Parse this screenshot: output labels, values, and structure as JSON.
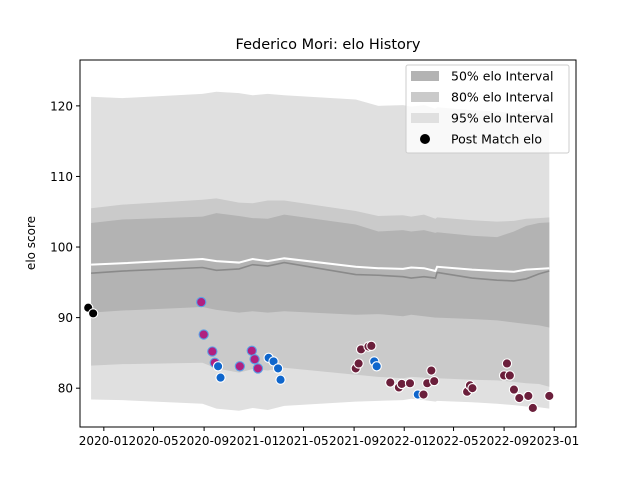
{
  "chart_data": {
    "type": "line",
    "title": "Federico Mori: elo History",
    "xlabel": "",
    "ylabel": "elo score",
    "xlim": [
      "2019-11-04",
      "2023-02-23"
    ],
    "ylim": [
      74.5,
      126.5
    ],
    "x_ticks": [
      "2020-01",
      "2020-05",
      "2020-09",
      "2021-01",
      "2021-05",
      "2021-09",
      "2022-01",
      "2022-05",
      "2022-09",
      "2023-01"
    ],
    "y_ticks": [
      80,
      90,
      100,
      110,
      120
    ],
    "grid": false,
    "legend_position": "top-right",
    "legend": [
      {
        "label": "50% elo Interval",
        "kind": "band",
        "color": "#b3b3b3"
      },
      {
        "label": "80% elo Interval",
        "kind": "band",
        "color": "#cacaca"
      },
      {
        "label": "95% elo Interval",
        "kind": "band",
        "color": "#e0e0e0"
      },
      {
        "label": "Post Match elo",
        "kind": "marker",
        "color": "#000000"
      }
    ],
    "bands": {
      "x": [
        "2019-12-01",
        "2020-02-15",
        "2020-08-28",
        "2020-10-01",
        "2020-11-25",
        "2020-12-28",
        "2021-02-03",
        "2021-03-15",
        "2021-09-05",
        "2021-10-30",
        "2021-12-29",
        "2022-01-18",
        "2022-02-18",
        "2022-03-18",
        "2022-03-22",
        "2022-06-15",
        "2022-08-15",
        "2022-09-25",
        "2022-10-25",
        "2022-11-25",
        "2022-12-20"
      ],
      "mean": [
        96.3,
        96.6,
        97.1,
        96.7,
        96.9,
        97.5,
        97.3,
        97.8,
        96.1,
        96.0,
        95.8,
        95.6,
        95.8,
        95.6,
        96.4,
        95.6,
        95.3,
        95.2,
        95.5,
        96.2,
        96.6
      ],
      "upper_line": [
        97.5,
        97.7,
        98.3,
        98.0,
        97.8,
        98.3,
        98.0,
        98.4,
        97.2,
        97.0,
        96.9,
        97.1,
        97.0,
        96.6,
        97.2,
        96.8,
        96.6,
        96.5,
        96.8,
        96.9,
        97.0
      ],
      "p50": {
        "lower": [
          90.7,
          91.0,
          91.5,
          91.1,
          90.7,
          90.9,
          90.7,
          90.9,
          90.4,
          90.5,
          90.2,
          90.4,
          90.2,
          90.0,
          90.0,
          89.8,
          89.6,
          89.3,
          89.1,
          88.9,
          88.6
        ],
        "upper": [
          103.4,
          103.9,
          104.3,
          104.8,
          104.4,
          104.1,
          104.0,
          104.6,
          103.2,
          102.2,
          102.4,
          102.2,
          102.4,
          102.0,
          102.1,
          101.6,
          101.4,
          102.2,
          103.0,
          103.4,
          103.5
        ]
      },
      "p80": {
        "lower": [
          83.2,
          83.4,
          83.6,
          82.8,
          82.2,
          82.7,
          82.5,
          82.9,
          81.9,
          81.6,
          81.4,
          81.6,
          81.5,
          81.0,
          81.4,
          81.2,
          81.1,
          80.9,
          80.7,
          80.6,
          80.2
        ],
        "upper": [
          105.5,
          106.0,
          106.7,
          106.9,
          106.3,
          106.2,
          106.6,
          106.6,
          105.1,
          104.4,
          104.5,
          104.3,
          104.6,
          104.0,
          104.2,
          103.8,
          103.6,
          103.7,
          104.0,
          104.1,
          104.2
        ]
      },
      "p95": {
        "lower": [
          78.4,
          78.3,
          77.8,
          77.1,
          76.8,
          77.2,
          76.9,
          77.5,
          78.1,
          78.2,
          78.3,
          78.5,
          78.3,
          78.1,
          78.2,
          78.0,
          77.8,
          77.6,
          77.4,
          77.3,
          77.1
        ],
        "upper": [
          121.3,
          121.1,
          121.7,
          122.0,
          121.8,
          121.5,
          121.7,
          121.5,
          120.9,
          120.0,
          120.1,
          119.9,
          120.1,
          119.6,
          119.8,
          119.4,
          119.2,
          119.0,
          119.2,
          119.4,
          119.6
        ]
      }
    },
    "upper_95_start": 122.0,
    "upper_80_start": 114.0,
    "upper_50_start": 105.3,
    "series": [
      {
        "marker_colors": [
          "#000000",
          "#000000"
        ],
        "points": [
          {
            "x": "2019-11-24",
            "y": 91.4,
            "fill": "#000000",
            "edge": "#ffffff"
          },
          {
            "x": "2019-12-06",
            "y": 90.6,
            "fill": "#000000",
            "edge": "#ffffff"
          }
        ]
      },
      {
        "points": [
          {
            "x": "2020-08-25",
            "y": 92.2,
            "fill": "#b02080",
            "edge": "#5aa0e6"
          },
          {
            "x": "2020-08-31",
            "y": 87.6,
            "fill": "#b02080",
            "edge": "#5aa0e6"
          },
          {
            "x": "2020-09-21",
            "y": 85.2,
            "fill": "#b02080",
            "edge": "#5aa0e6"
          },
          {
            "x": "2020-09-27",
            "y": 83.6,
            "fill": "#b02080",
            "edge": "#5aa0e6"
          },
          {
            "x": "2020-10-05",
            "y": 83.1,
            "fill": "#0f66cc",
            "edge": "#ffffff"
          },
          {
            "x": "2020-10-11",
            "y": 81.5,
            "fill": "#0f66cc",
            "edge": "#ffffff"
          },
          {
            "x": "2020-11-27",
            "y": 83.1,
            "fill": "#b02080",
            "edge": "#5aa0e6"
          },
          {
            "x": "2020-12-26",
            "y": 85.3,
            "fill": "#b02080",
            "edge": "#5aa0e6"
          },
          {
            "x": "2021-01-02",
            "y": 84.1,
            "fill": "#b02080",
            "edge": "#5aa0e6"
          },
          {
            "x": "2021-01-10",
            "y": 82.8,
            "fill": "#b02080",
            "edge": "#5aa0e6"
          },
          {
            "x": "2021-02-05",
            "y": 84.3,
            "fill": "#0f66cc",
            "edge": "#ffffff"
          },
          {
            "x": "2021-02-17",
            "y": 83.8,
            "fill": "#0f66cc",
            "edge": "#ffffff"
          },
          {
            "x": "2021-02-28",
            "y": 82.8,
            "fill": "#0f66cc",
            "edge": "#ffffff"
          },
          {
            "x": "2021-03-06",
            "y": 81.2,
            "fill": "#0f66cc",
            "edge": "#ffffff"
          }
        ]
      },
      {
        "points": [
          {
            "x": "2021-09-05",
            "y": 82.8,
            "fill": "#6b1f3b",
            "edge": "#ffffff"
          },
          {
            "x": "2021-09-12",
            "y": 83.5,
            "fill": "#6b1f3b",
            "edge": "#ffffff"
          },
          {
            "x": "2021-09-18",
            "y": 85.5,
            "fill": "#6b1f3b",
            "edge": "#ffffff"
          },
          {
            "x": "2021-10-06",
            "y": 85.9,
            "fill": "#6b1f3b",
            "edge": "#ffffff"
          },
          {
            "x": "2021-10-13",
            "y": 86.0,
            "fill": "#6b1f3b",
            "edge": "#ffffff"
          },
          {
            "x": "2021-10-20",
            "y": 83.8,
            "fill": "#0f66cc",
            "edge": "#ffffff"
          },
          {
            "x": "2021-10-26",
            "y": 83.1,
            "fill": "#0f66cc",
            "edge": "#ffffff"
          },
          {
            "x": "2021-11-28",
            "y": 80.8,
            "fill": "#6b1f3b",
            "edge": "#ffffff"
          },
          {
            "x": "2021-12-19",
            "y": 80.1,
            "fill": "#6b1f3b",
            "edge": "#ffffff"
          },
          {
            "x": "2021-12-26",
            "y": 80.6,
            "fill": "#6b1f3b",
            "edge": "#ffffff"
          },
          {
            "x": "2022-01-15",
            "y": 80.7,
            "fill": "#6b1f3b",
            "edge": "#ffffff"
          },
          {
            "x": "2022-02-03",
            "y": 79.1,
            "fill": "#0f66cc",
            "edge": "#ffffff"
          },
          {
            "x": "2022-02-17",
            "y": 79.1,
            "fill": "#6b1f3b",
            "edge": "#ffffff"
          },
          {
            "x": "2022-02-26",
            "y": 80.7,
            "fill": "#6b1f3b",
            "edge": "#ffffff"
          },
          {
            "x": "2022-03-08",
            "y": 82.5,
            "fill": "#6b1f3b",
            "edge": "#ffffff"
          },
          {
            "x": "2022-03-15",
            "y": 81.0,
            "fill": "#6b1f3b",
            "edge": "#ffffff"
          },
          {
            "x": "2022-06-03",
            "y": 79.5,
            "fill": "#6b1f3b",
            "edge": "#ffffff"
          },
          {
            "x": "2022-06-10",
            "y": 80.4,
            "fill": "#6b1f3b",
            "edge": "#ffffff"
          },
          {
            "x": "2022-06-16",
            "y": 80.0,
            "fill": "#6b1f3b",
            "edge": "#ffffff"
          },
          {
            "x": "2022-09-01",
            "y": 81.8,
            "fill": "#6b1f3b",
            "edge": "#ffffff"
          },
          {
            "x": "2022-09-08",
            "y": 83.5,
            "fill": "#6b1f3b",
            "edge": "#ffffff"
          },
          {
            "x": "2022-09-15",
            "y": 81.8,
            "fill": "#6b1f3b",
            "edge": "#ffffff"
          },
          {
            "x": "2022-09-25",
            "y": 79.8,
            "fill": "#6b1f3b",
            "edge": "#ffffff"
          },
          {
            "x": "2022-10-08",
            "y": 78.6,
            "fill": "#6b1f3b",
            "edge": "#ffffff"
          },
          {
            "x": "2022-10-30",
            "y": 78.9,
            "fill": "#6b1f3b",
            "edge": "#ffffff"
          },
          {
            "x": "2022-11-10",
            "y": 77.2,
            "fill": "#6b1f3b",
            "edge": "#ffffff"
          },
          {
            "x": "2022-12-20",
            "y": 78.9,
            "fill": "#6b1f3b",
            "edge": "#ffffff"
          }
        ]
      }
    ],
    "colors": {
      "band_95": "#e0e0e0",
      "band_80": "#cacaca",
      "band_50": "#b3b3b3",
      "mean_line": "#8a8a8a",
      "upper_line": "#ffffff",
      "axis": "#000000"
    }
  }
}
